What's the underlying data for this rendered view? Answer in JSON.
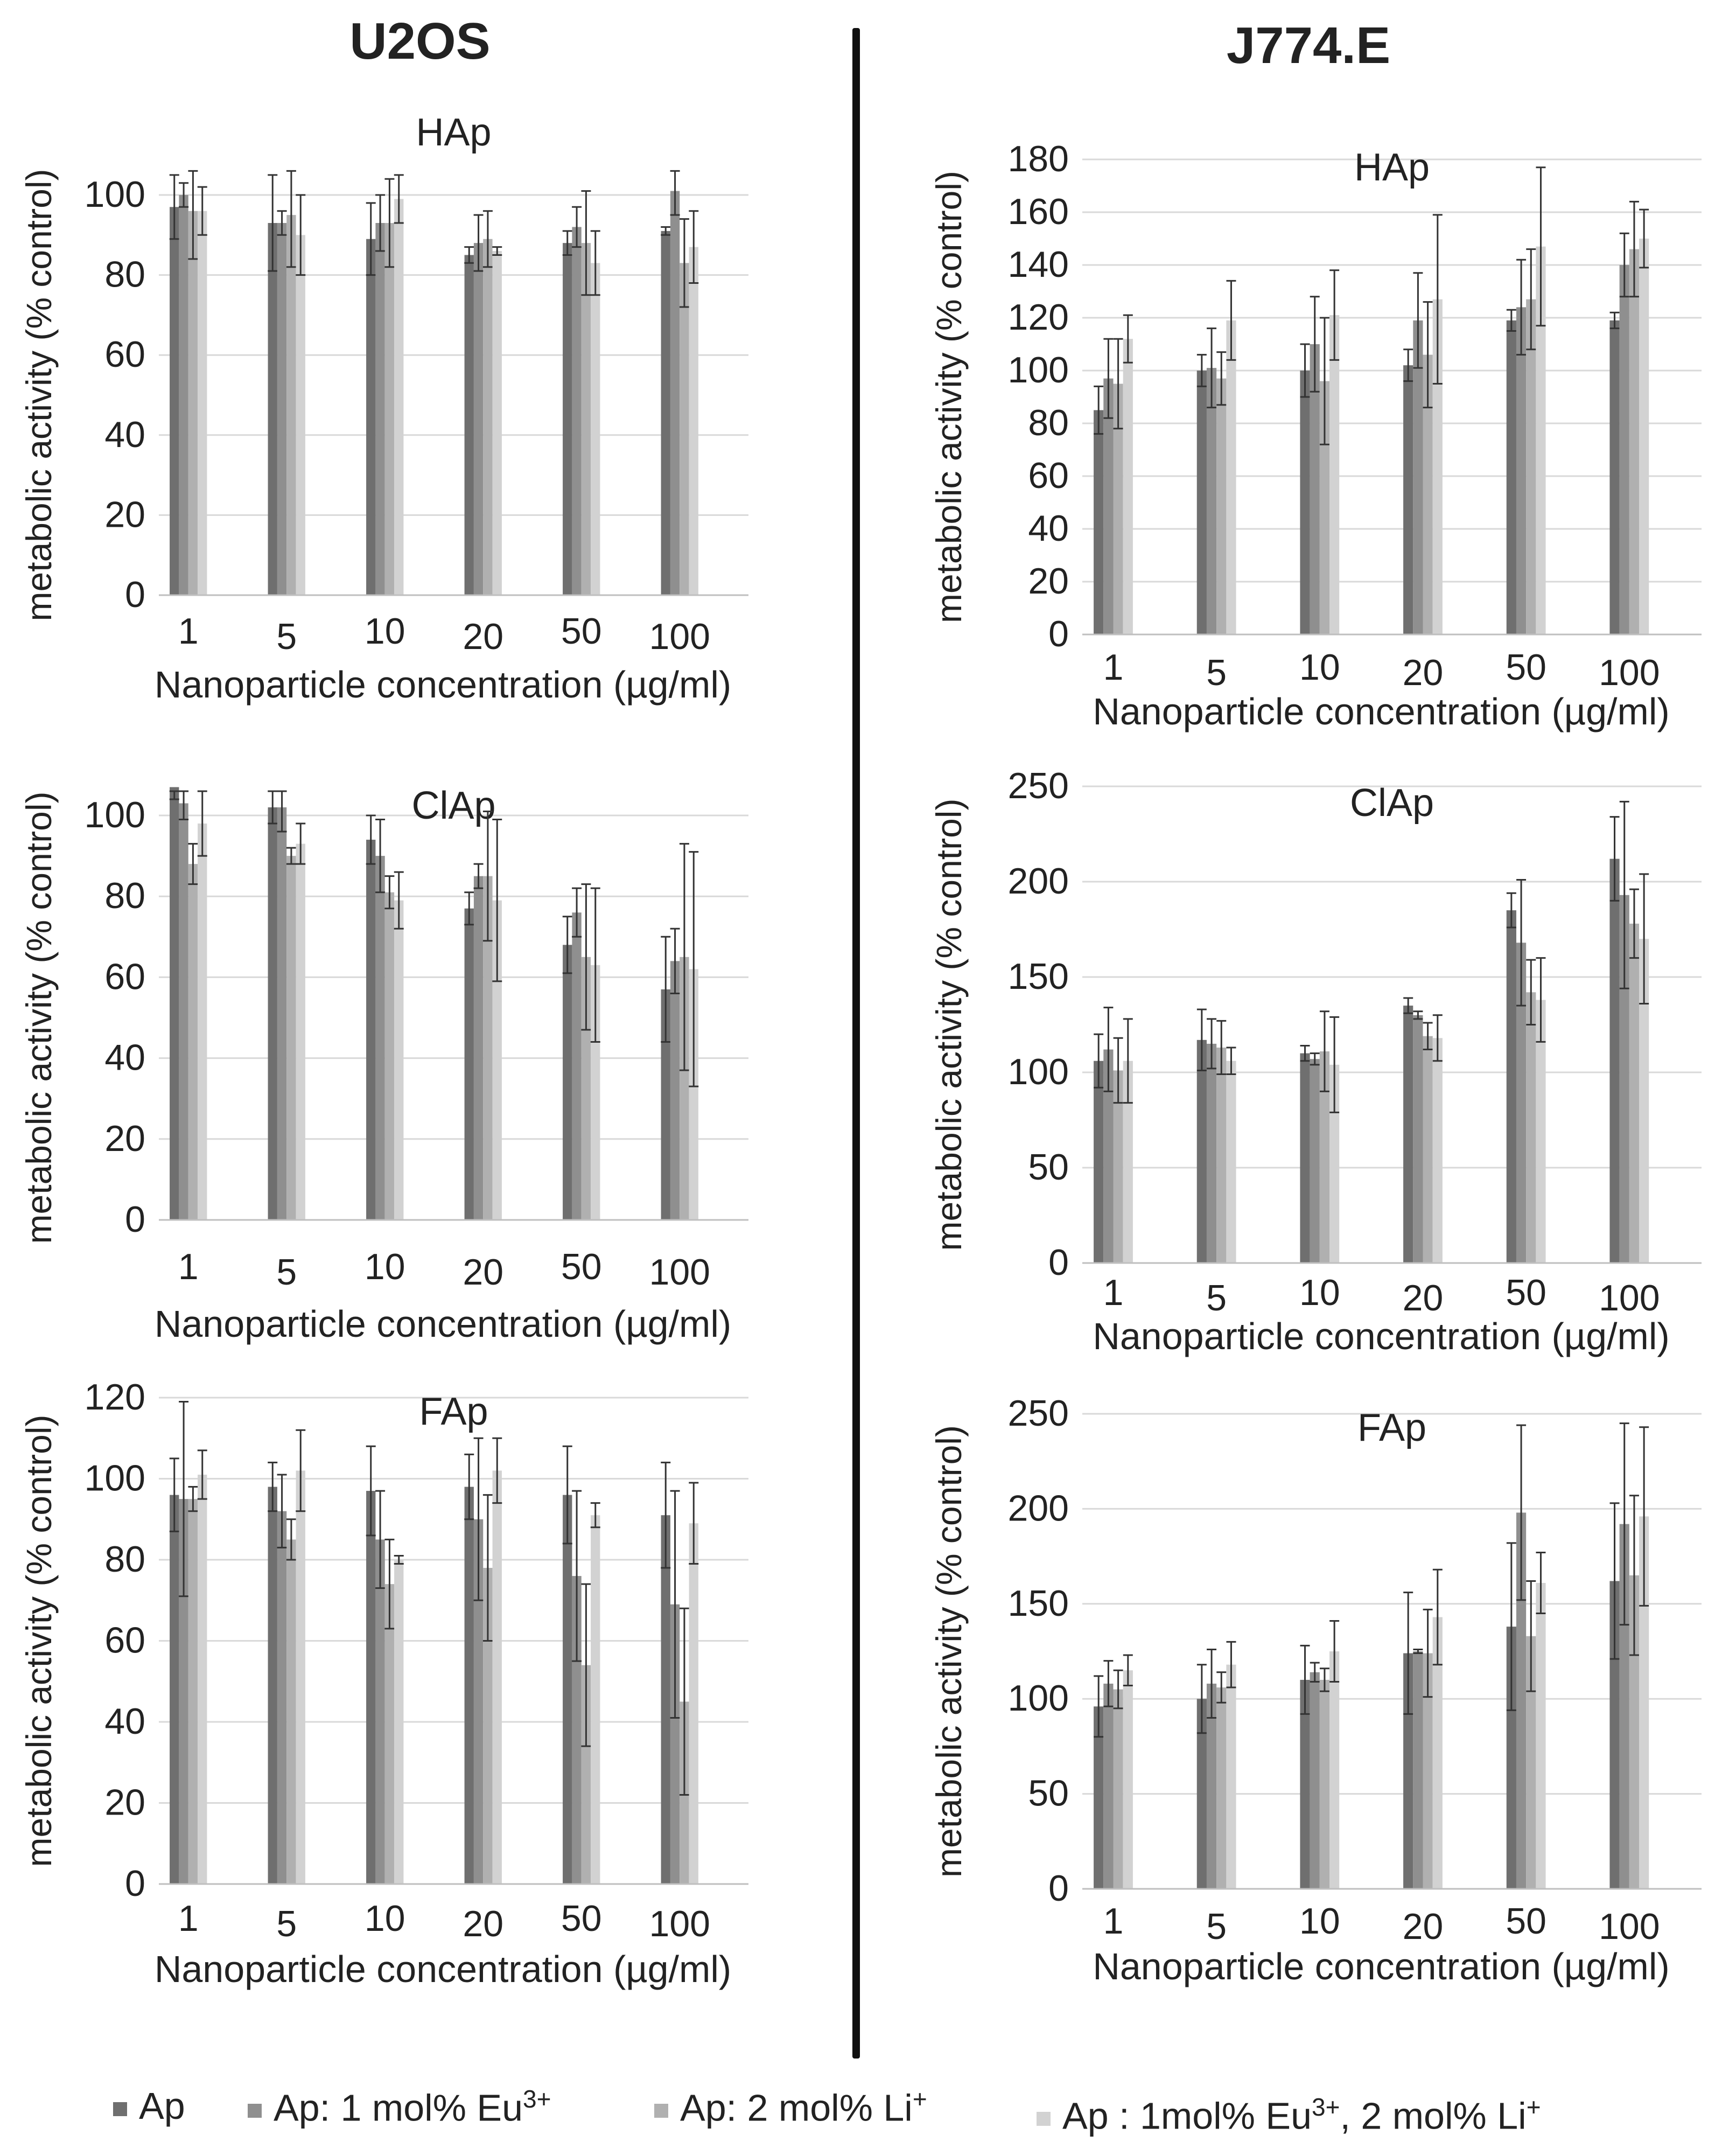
{
  "columns": {
    "left": "U2OS",
    "right": "J774.E"
  },
  "legend": [
    {
      "label": "Ap",
      "sup": "",
      "label2": "",
      "sup2": "",
      "color": "#6f6f6f"
    },
    {
      "label": "Ap: 1 mol% Eu",
      "sup": "3+",
      "label2": "",
      "sup2": "",
      "color": "#8f8f8f"
    },
    {
      "label": "Ap: 2 mol% Li",
      "sup": "+",
      "label2": "",
      "sup2": "",
      "color": "#b0b0b0"
    },
    {
      "label": "Ap : 1mol% Eu",
      "sup": "3+",
      "label2": ", 2 mol% Li",
      "sup2": "+",
      "color": "#d2d2d2"
    }
  ],
  "chart_data": [
    {
      "type": "bar",
      "column": "U2OS",
      "title": "HAp",
      "xlabel": "Nanoparticle concentration (µg/ml)",
      "ylabel": "metabolic activity (% control)",
      "categories": [
        "1",
        "5",
        "10",
        "20",
        "50",
        "100"
      ],
      "ylim": [
        0,
        100
      ],
      "yticks": [
        0,
        20,
        40,
        60,
        80,
        100
      ],
      "series": [
        {
          "name": "Ap",
          "values": [
            97,
            93,
            89,
            85,
            88,
            91
          ],
          "errors": [
            8,
            12,
            9,
            2,
            3,
            1
          ]
        },
        {
          "name": "Ap: 1 mol% Eu3+",
          "values": [
            100,
            93,
            93,
            88,
            92,
            101
          ],
          "errors": [
            3,
            3,
            7,
            7,
            5,
            6
          ]
        },
        {
          "name": "Ap: 2 mol% Li+",
          "values": [
            96,
            95,
            93,
            89,
            88,
            83
          ],
          "errors": [
            12,
            13,
            11,
            7,
            13,
            11
          ]
        },
        {
          "name": "Ap : 1mol% Eu3+, 2 mol% Li+",
          "values": [
            96,
            90,
            99,
            86,
            83,
            87
          ],
          "errors": [
            6,
            10,
            6,
            1,
            8,
            9
          ]
        }
      ]
    },
    {
      "type": "bar",
      "column": "U2OS",
      "title": "ClAp",
      "xlabel": "Nanoparticle concentration (µg/ml)",
      "ylabel": "metabolic activity (% control)",
      "categories": [
        "1",
        "5",
        "10",
        "20",
        "50",
        "100"
      ],
      "ylim": [
        0,
        100
      ],
      "yticks": [
        0,
        20,
        40,
        60,
        80,
        100
      ],
      "series": [
        {
          "name": "Ap",
          "values": [
            107,
            102,
            94,
            77,
            68,
            57
          ],
          "errors": [
            3,
            4,
            6,
            4,
            7,
            13
          ]
        },
        {
          "name": "Ap: 1 mol% Eu3+",
          "values": [
            103,
            102,
            90,
            85,
            76,
            64
          ],
          "errors": [
            4,
            6,
            9,
            3,
            6,
            8
          ]
        },
        {
          "name": "Ap: 2 mol% Li+",
          "values": [
            88,
            90,
            81,
            85,
            65,
            65
          ],
          "errors": [
            5,
            2,
            4,
            16,
            18,
            28
          ]
        },
        {
          "name": "Ap : 1mol% Eu3+, 2 mol% Li+",
          "values": [
            98,
            93,
            79,
            79,
            63,
            62
          ],
          "errors": [
            8,
            5,
            7,
            20,
            19,
            29
          ]
        }
      ]
    },
    {
      "type": "bar",
      "column": "U2OS",
      "title": "FAp",
      "xlabel": "Nanoparticle concentration (µg/ml)",
      "ylabel": "metabolic activity (% control)",
      "categories": [
        "1",
        "5",
        "10",
        "20",
        "50",
        "100"
      ],
      "ylim": [
        0,
        120
      ],
      "yticks": [
        0,
        20,
        40,
        60,
        80,
        100,
        120
      ],
      "series": [
        {
          "name": "Ap",
          "values": [
            96,
            98,
            97,
            98,
            96,
            91
          ],
          "errors": [
            9,
            6,
            11,
            8,
            12,
            13
          ]
        },
        {
          "name": "Ap: 1 mol% Eu3+",
          "values": [
            95,
            92,
            85,
            90,
            76,
            69
          ],
          "errors": [
            24,
            9,
            12,
            20,
            21,
            28
          ]
        },
        {
          "name": "Ap: 2 mol% Li+",
          "values": [
            95,
            85,
            74,
            78,
            54,
            45
          ],
          "errors": [
            3,
            5,
            11,
            18,
            20,
            23
          ]
        },
        {
          "name": "Ap : 1mol% Eu3+, 2 mol% Li+",
          "values": [
            101,
            102,
            80,
            102,
            91,
            89
          ],
          "errors": [
            6,
            10,
            1,
            8,
            3,
            10
          ]
        }
      ]
    },
    {
      "type": "bar",
      "column": "J774.E",
      "title": "HAp",
      "xlabel": "Nanoparticle concentration (µg/ml)",
      "ylabel": "metabolic activity (% control)",
      "categories": [
        "1",
        "5",
        "10",
        "20",
        "50",
        "100"
      ],
      "ylim": [
        0,
        180
      ],
      "yticks": [
        0,
        20,
        40,
        60,
        80,
        100,
        120,
        140,
        160,
        180
      ],
      "series": [
        {
          "name": "Ap",
          "values": [
            85,
            100,
            100,
            102,
            119,
            119
          ],
          "errors": [
            9,
            6,
            10,
            6,
            4,
            3
          ]
        },
        {
          "name": "Ap: 1 mol% Eu3+",
          "values": [
            97,
            101,
            110,
            119,
            124,
            140
          ],
          "errors": [
            15,
            15,
            18,
            18,
            18,
            12
          ]
        },
        {
          "name": "Ap: 2 mol% Li+",
          "values": [
            95,
            97,
            96,
            106,
            127,
            146
          ],
          "errors": [
            17,
            10,
            24,
            20,
            19,
            18
          ]
        },
        {
          "name": "Ap : 1mol% Eu3+, 2 mol% Li+",
          "values": [
            112,
            119,
            121,
            127,
            147,
            150
          ],
          "errors": [
            9,
            15,
            17,
            32,
            30,
            11
          ]
        }
      ]
    },
    {
      "type": "bar",
      "column": "J774.E",
      "title": "ClAp",
      "xlabel": "Nanoparticle concentration (µg/ml)",
      "ylabel": "metabolic activity (% control)",
      "categories": [
        "1",
        "5",
        "10",
        "20",
        "50",
        "100"
      ],
      "ylim": [
        0,
        250
      ],
      "yticks": [
        0,
        50,
        100,
        150,
        200,
        250
      ],
      "series": [
        {
          "name": "Ap",
          "values": [
            106,
            117,
            110,
            135,
            185,
            212
          ],
          "errors": [
            14,
            16,
            4,
            4,
            9,
            22
          ]
        },
        {
          "name": "Ap: 1 mol% Eu3+",
          "values": [
            112,
            115,
            107,
            130,
            168,
            193
          ],
          "errors": [
            22,
            13,
            3,
            2,
            33,
            49
          ]
        },
        {
          "name": "Ap: 2 mol% Li+",
          "values": [
            101,
            113,
            111,
            119,
            142,
            178
          ],
          "errors": [
            17,
            14,
            21,
            7,
            17,
            18
          ]
        },
        {
          "name": "Ap : 1mol% Eu3+, 2 mol% Li+",
          "values": [
            106,
            106,
            104,
            118,
            138,
            170
          ],
          "errors": [
            22,
            7,
            25,
            12,
            22,
            34
          ]
        }
      ]
    },
    {
      "type": "bar",
      "column": "J774.E",
      "title": "FAp",
      "xlabel": "Nanoparticle concentration (µg/ml)",
      "ylabel": "metabolic activity (% control)",
      "categories": [
        "1",
        "5",
        "10",
        "20",
        "50",
        "100"
      ],
      "ylim": [
        0,
        250
      ],
      "yticks": [
        0,
        50,
        100,
        150,
        200,
        250
      ],
      "series": [
        {
          "name": "Ap",
          "values": [
            96,
            100,
            110,
            124,
            138,
            162
          ],
          "errors": [
            16,
            18,
            18,
            32,
            44,
            41
          ]
        },
        {
          "name": "Ap: 1 mol% Eu3+",
          "values": [
            108,
            108,
            114,
            125,
            198,
            192
          ],
          "errors": [
            12,
            18,
            5,
            1,
            46,
            53
          ]
        },
        {
          "name": "Ap: 2 mol% Li+",
          "values": [
            105,
            106,
            110,
            124,
            133,
            165
          ],
          "errors": [
            10,
            8,
            6,
            23,
            29,
            42
          ]
        },
        {
          "name": "Ap : 1mol% Eu3+, 2 mol% Li+",
          "values": [
            115,
            118,
            125,
            143,
            161,
            196
          ],
          "errors": [
            8,
            12,
            16,
            25,
            16,
            47
          ]
        }
      ]
    }
  ]
}
